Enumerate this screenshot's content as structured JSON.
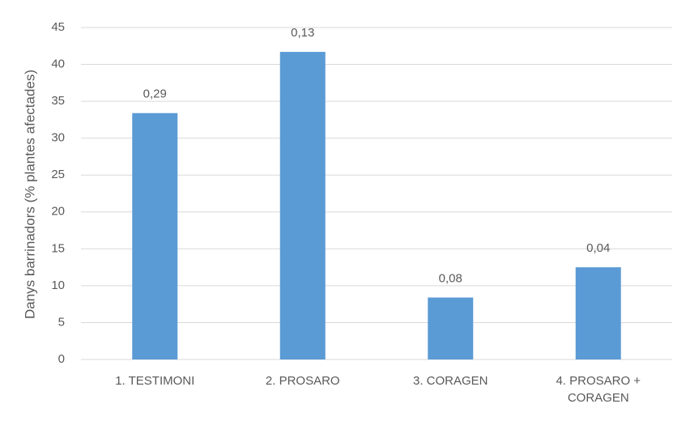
{
  "chart_data": {
    "type": "bar",
    "y_label": "Danys barrinadors (% plantes afectades)",
    "categories": [
      "1. TESTIMONI",
      "2. PROSARO",
      "3. CORAGEN",
      "4. PROSARO + CORAGEN"
    ],
    "values": [
      33.4,
      41.7,
      8.4,
      12.5
    ],
    "annotations": [
      "0,29",
      "0,13",
      "0,08",
      "0,04"
    ],
    "color": "#5b9bd5",
    "ylim": [
      0,
      45
    ],
    "yticks": [
      0,
      5,
      10,
      15,
      20,
      25,
      30,
      35,
      40,
      45
    ],
    "grid": true
  }
}
